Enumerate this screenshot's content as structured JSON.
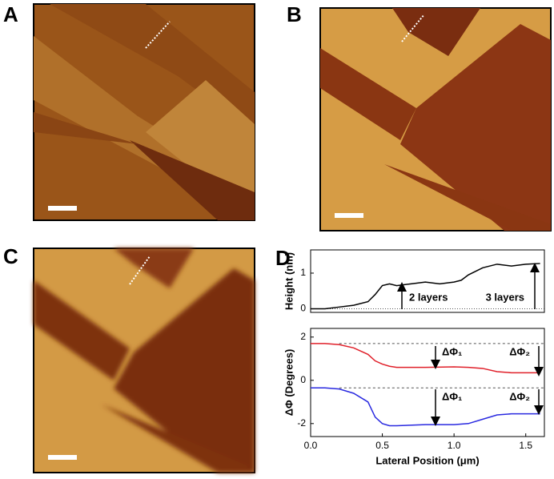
{
  "panel_labels": [
    "A",
    "B",
    "C",
    "D"
  ],
  "chart_data": [
    {
      "type": "line",
      "ylabel": "Height (nm)",
      "x": [
        0,
        0.1,
        0.2,
        0.3,
        0.4,
        0.45,
        0.5,
        0.55,
        0.6,
        0.7,
        0.8,
        0.9,
        1.0,
        1.05,
        1.1,
        1.2,
        1.3,
        1.4,
        1.5,
        1.6
      ],
      "series": [
        {
          "color": "#000000",
          "values": [
            0,
            0,
            0.05,
            0.1,
            0.2,
            0.4,
            0.65,
            0.7,
            0.65,
            0.7,
            0.75,
            0.7,
            0.75,
            0.8,
            0.95,
            1.15,
            1.25,
            1.2,
            1.25,
            1.27
          ]
        }
      ],
      "xlim": [
        0,
        1.63
      ],
      "ylim": [
        -0.1,
        1.65
      ],
      "yticks": [
        0,
        1
      ],
      "reference_lines": [
        0
      ],
      "annotations": [
        "2 layers",
        "3 layers"
      ]
    },
    {
      "type": "line",
      "ylabel": "ΔΦ (Degrees)",
      "xlabel": "Lateral Position (μm)",
      "x": [
        0,
        0.1,
        0.2,
        0.3,
        0.4,
        0.45,
        0.5,
        0.55,
        0.6,
        0.8,
        1.0,
        1.1,
        1.2,
        1.3,
        1.4,
        1.6
      ],
      "series": [
        {
          "color": "#e0202a",
          "values": [
            1.7,
            1.7,
            1.65,
            1.5,
            1.2,
            0.9,
            0.75,
            0.65,
            0.6,
            0.6,
            0.62,
            0.6,
            0.55,
            0.4,
            0.35,
            0.35
          ]
        },
        {
          "color": "#2a2ae0",
          "values": [
            -0.35,
            -0.35,
            -0.4,
            -0.6,
            -1.0,
            -1.7,
            -2.0,
            -2.1,
            -2.1,
            -2.05,
            -2.05,
            -2.0,
            -1.8,
            -1.6,
            -1.55,
            -1.55
          ]
        }
      ],
      "xlim": [
        0,
        1.63
      ],
      "ylim": [
        -2.6,
        2.4
      ],
      "yticks": [
        -2,
        0,
        2
      ],
      "xticks": [
        {
          "value": 0,
          "label": "0.0"
        },
        0.5,
        {
          "value": 1,
          "label": "1.0"
        },
        1.5
      ],
      "reference_lines": [
        1.7,
        -0.35
      ],
      "annotations": [
        "ΔΦ₁",
        "ΔΦ₂",
        "ΔΦ₁",
        "ΔΦ₂"
      ]
    }
  ]
}
